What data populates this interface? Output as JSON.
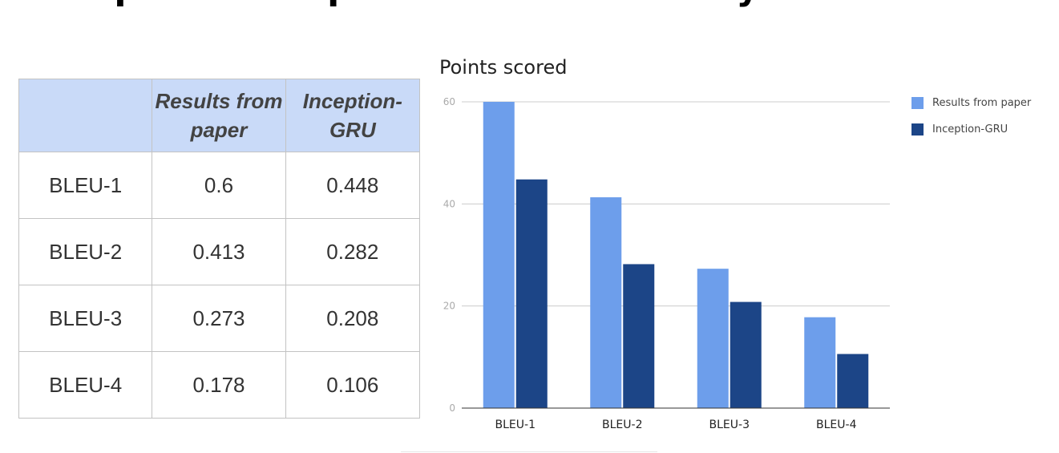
{
  "page": {
    "title": "Comparison of performance from my model"
  },
  "table": {
    "headers": [
      "",
      "Results from paper",
      "Inception-GRU"
    ],
    "rows": [
      [
        "BLEU-1",
        "0.6",
        "0.448"
      ],
      [
        "BLEU-2",
        "0.413",
        "0.282"
      ],
      [
        "BLEU-3",
        "0.273",
        "0.208"
      ],
      [
        "BLEU-4",
        "0.178",
        "0.106"
      ]
    ]
  },
  "chart_data": {
    "type": "bar",
    "title": "Points scored",
    "categories": [
      "BLEU-1",
      "BLEU-2",
      "BLEU-3",
      "BLEU-4"
    ],
    "series": [
      {
        "name": "Results from paper",
        "values": [
          60,
          41.3,
          27.3,
          17.8
        ],
        "color": "#6d9eeb"
      },
      {
        "name": "Inception-GRU",
        "values": [
          44.8,
          28.2,
          20.8,
          10.6
        ],
        "color": "#1c4587"
      }
    ],
    "xlabel": "",
    "ylabel": "",
    "ylim": [
      0,
      60
    ],
    "yticks": [
      0,
      20,
      40,
      60
    ],
    "grid": true,
    "legend_position": "right"
  }
}
